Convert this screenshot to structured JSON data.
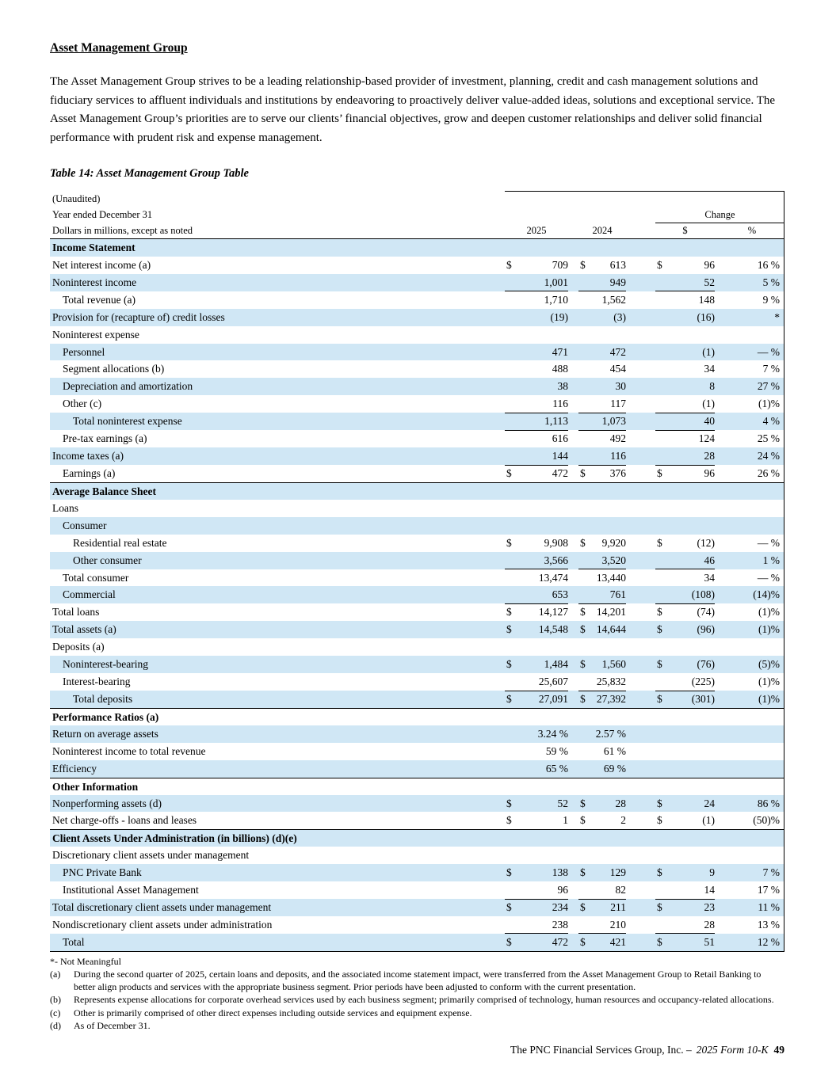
{
  "doc": {
    "title": "Asset Management Group",
    "intro": "The Asset Management Group strives to be a leading relationship-based provider of investment, planning, credit and cash management solutions and fiduciary services to affluent individuals and institutions by endeavoring to proactively deliver value-added ideas, solutions and exceptional service. The Asset Management Group’s priorities are to serve our clients’ financial objectives, grow and deepen customer relationships and deliver solid financial performance with prudent risk and expense management.",
    "table_title": "Table 14: Asset Management Group Table"
  },
  "table": {
    "head": {
      "unaudited": "(Unaudited)",
      "year_ended": "Year ended December 31",
      "change": "Change",
      "dollars_note": "Dollars in millions, except as noted",
      "col_2025": "2025",
      "col_2024": "2024",
      "col_change_dollar": "$",
      "col_change_pct": "%"
    },
    "rows": [
      {
        "label": "Income Statement",
        "indent": 0,
        "bold": true,
        "shade": true
      },
      {
        "label": "Net interest income (a)",
        "indent": 0,
        "shade": false,
        "d1": "$",
        "v1": "709",
        "d2": "$",
        "v2": "613",
        "d3": "$",
        "v3": "96",
        "v4": "16 %"
      },
      {
        "label": "Noninterest income",
        "indent": 0,
        "shade": true,
        "v1": "1,001",
        "v2": "949",
        "v3": "52",
        "v4": "5 %",
        "ul": true
      },
      {
        "label": "Total revenue (a)",
        "indent": 1,
        "shade": false,
        "v1": "1,710",
        "v2": "1,562",
        "v3": "148",
        "v4": "9 %"
      },
      {
        "label": "Provision for (recapture of) credit losses",
        "indent": 0,
        "shade": true,
        "v1": "(19)",
        "v2": "(3)",
        "v3": "(16)",
        "v4": "*"
      },
      {
        "label": "Noninterest expense",
        "indent": 0,
        "shade": false
      },
      {
        "label": "Personnel",
        "indent": 1,
        "shade": true,
        "v1": "471",
        "v2": "472",
        "v3": "(1)",
        "v4": "— %"
      },
      {
        "label": "Segment allocations (b)",
        "indent": 1,
        "shade": false,
        "v1": "488",
        "v2": "454",
        "v3": "34",
        "v4": "7 %"
      },
      {
        "label": "Depreciation and amortization",
        "indent": 1,
        "shade": true,
        "v1": "38",
        "v2": "30",
        "v3": "8",
        "v4": "27 %"
      },
      {
        "label": "Other (c)",
        "indent": 1,
        "shade": false,
        "v1": "116",
        "v2": "117",
        "v3": "(1)",
        "v4": "(1)%",
        "ul": true
      },
      {
        "label": "Total noninterest expense",
        "indent": 2,
        "shade": true,
        "v1": "1,113",
        "v2": "1,073",
        "v3": "40",
        "v4": "4 %",
        "ul": true
      },
      {
        "label": "Pre-tax earnings (a)",
        "indent": 1,
        "shade": false,
        "v1": "616",
        "v2": "492",
        "v3": "124",
        "v4": "25 %"
      },
      {
        "label": "Income taxes (a)",
        "indent": 0,
        "shade": true,
        "v1": "144",
        "v2": "116",
        "v3": "28",
        "v4": "24 %",
        "ul": true
      },
      {
        "label": "Earnings (a)",
        "indent": 1,
        "shade": false,
        "d1": "$",
        "v1": "472",
        "d2": "$",
        "v2": "376",
        "d3": "$",
        "v3": "96",
        "v4": "26 %"
      },
      {
        "label": "Average Balance Sheet",
        "indent": 0,
        "bold": true,
        "shade": true,
        "bt": true
      },
      {
        "label": "Loans",
        "indent": 0,
        "shade": false
      },
      {
        "label": "Consumer",
        "indent": 1,
        "shade": true
      },
      {
        "label": "Residential real estate",
        "indent": 2,
        "shade": false,
        "d1": "$",
        "v1": "9,908",
        "d2": "$",
        "v2": "9,920",
        "d3": "$",
        "v3": "(12)",
        "v4": "— %"
      },
      {
        "label": "Other consumer",
        "indent": 2,
        "shade": true,
        "v1": "3,566",
        "v2": "3,520",
        "v3": "46",
        "v4": "1 %",
        "ul": true
      },
      {
        "label": "Total consumer",
        "indent": 1,
        "shade": false,
        "v1": "13,474",
        "v2": "13,440",
        "v3": "34",
        "v4": "— %"
      },
      {
        "label": "Commercial",
        "indent": 1,
        "shade": true,
        "v1": "653",
        "v2": "761",
        "v3": "(108)",
        "v4": "(14)%",
        "ul": true
      },
      {
        "label": "Total loans",
        "indent": 0,
        "shade": false,
        "d1": "$",
        "v1": "14,127",
        "d2": "$",
        "v2": "14,201",
        "d3": "$",
        "v3": "(74)",
        "v4": "(1)%"
      },
      {
        "label": "Total assets (a)",
        "indent": 0,
        "shade": true,
        "d1": "$",
        "v1": "14,548",
        "d2": "$",
        "v2": "14,644",
        "d3": "$",
        "v3": "(96)",
        "v4": "(1)%"
      },
      {
        "label": "Deposits (a)",
        "indent": 0,
        "shade": false
      },
      {
        "label": "Noninterest-bearing",
        "indent": 1,
        "shade": true,
        "d1": "$",
        "v1": "1,484",
        "d2": "$",
        "v2": "1,560",
        "d3": "$",
        "v3": "(76)",
        "v4": "(5)%"
      },
      {
        "label": "Interest-bearing",
        "indent": 1,
        "shade": false,
        "v1": "25,607",
        "v2": "25,832",
        "v3": "(225)",
        "v4": "(1)%",
        "ul": true
      },
      {
        "label": "Total deposits",
        "indent": 2,
        "shade": true,
        "d1": "$",
        "v1": "27,091",
        "d2": "$",
        "v2": "27,392",
        "d3": "$",
        "v3": "(301)",
        "v4": "(1)%"
      },
      {
        "label": "Performance Ratios (a)",
        "indent": 0,
        "bold": true,
        "shade": false,
        "bt": true
      },
      {
        "label": "Return on average assets",
        "indent": 0,
        "shade": true,
        "v1": "3.24 %",
        "v2": "2.57 %"
      },
      {
        "label": "Noninterest income to total revenue",
        "indent": 0,
        "shade": false,
        "v1": "59 %",
        "v2": "61 %"
      },
      {
        "label": "Efficiency",
        "indent": 0,
        "shade": true,
        "v1": "65 %",
        "v2": "69 %"
      },
      {
        "label": "Other Information",
        "indent": 0,
        "bold": true,
        "shade": false,
        "bt": true
      },
      {
        "label": "Nonperforming assets (d)",
        "indent": 0,
        "shade": true,
        "d1": "$",
        "v1": "52",
        "d2": "$",
        "v2": "28",
        "d3": "$",
        "v3": "24",
        "v4": "86 %"
      },
      {
        "label": "Net charge-offs - loans and leases",
        "indent": 0,
        "shade": false,
        "d1": "$",
        "v1": "1",
        "d2": "$",
        "v2": "2",
        "d3": "$",
        "v3": "(1)",
        "v4": "(50)%"
      },
      {
        "label": "Client Assets Under Administration (in billions) (d)(e)",
        "indent": 0,
        "bold": true,
        "shade": true,
        "bt": true
      },
      {
        "label": "Discretionary client assets under management",
        "indent": 0,
        "shade": false
      },
      {
        "label": "PNC Private Bank",
        "indent": 1,
        "shade": true,
        "d1": "$",
        "v1": "138",
        "d2": "$",
        "v2": "129",
        "d3": "$",
        "v3": "9",
        "v4": "7 %"
      },
      {
        "label": "Institutional Asset Management",
        "indent": 1,
        "shade": false,
        "v1": "96",
        "v2": "82",
        "v3": "14",
        "v4": "17 %",
        "ul": true
      },
      {
        "label": "Total discretionary client assets under management",
        "indent": 0,
        "shade": true,
        "d1": "$",
        "v1": "234",
        "d2": "$",
        "v2": "211",
        "d3": "$",
        "v3": "23",
        "v4": "11 %"
      },
      {
        "label": "Nondiscretionary client assets under administration",
        "indent": 0,
        "shade": false,
        "v1": "238",
        "v2": "210",
        "v3": "28",
        "v4": "13 %",
        "ul": true
      },
      {
        "label": "Total",
        "indent": 1,
        "shade": true,
        "d1": "$",
        "v1": "472",
        "d2": "$",
        "v2": "421",
        "d3": "$",
        "v3": "51",
        "v4": "12 %"
      }
    ]
  },
  "footnotes": {
    "star": "*- Not Meaningful",
    "items": [
      {
        "marker": "(a)",
        "text": "During the second quarter of 2025, certain loans and deposits, and the associated income statement impact, were transferred from the Asset Management Group to Retail Banking to better align products and services with the appropriate business segment. Prior periods have been adjusted to conform with the current presentation."
      },
      {
        "marker": "(b)",
        "text": "Represents expense allocations for corporate overhead services used by each business segment; primarily comprised of technology, human resources and occupancy-related allocations."
      },
      {
        "marker": "(c)",
        "text": "Other is primarily comprised of other direct expenses including outside services and equipment expense."
      },
      {
        "marker": "(d)",
        "text": "As of December 31."
      }
    ]
  },
  "footer": {
    "company": "The PNC Financial Services Group, Inc. –",
    "form": "2025 Form 10-K",
    "page_number": "49"
  }
}
